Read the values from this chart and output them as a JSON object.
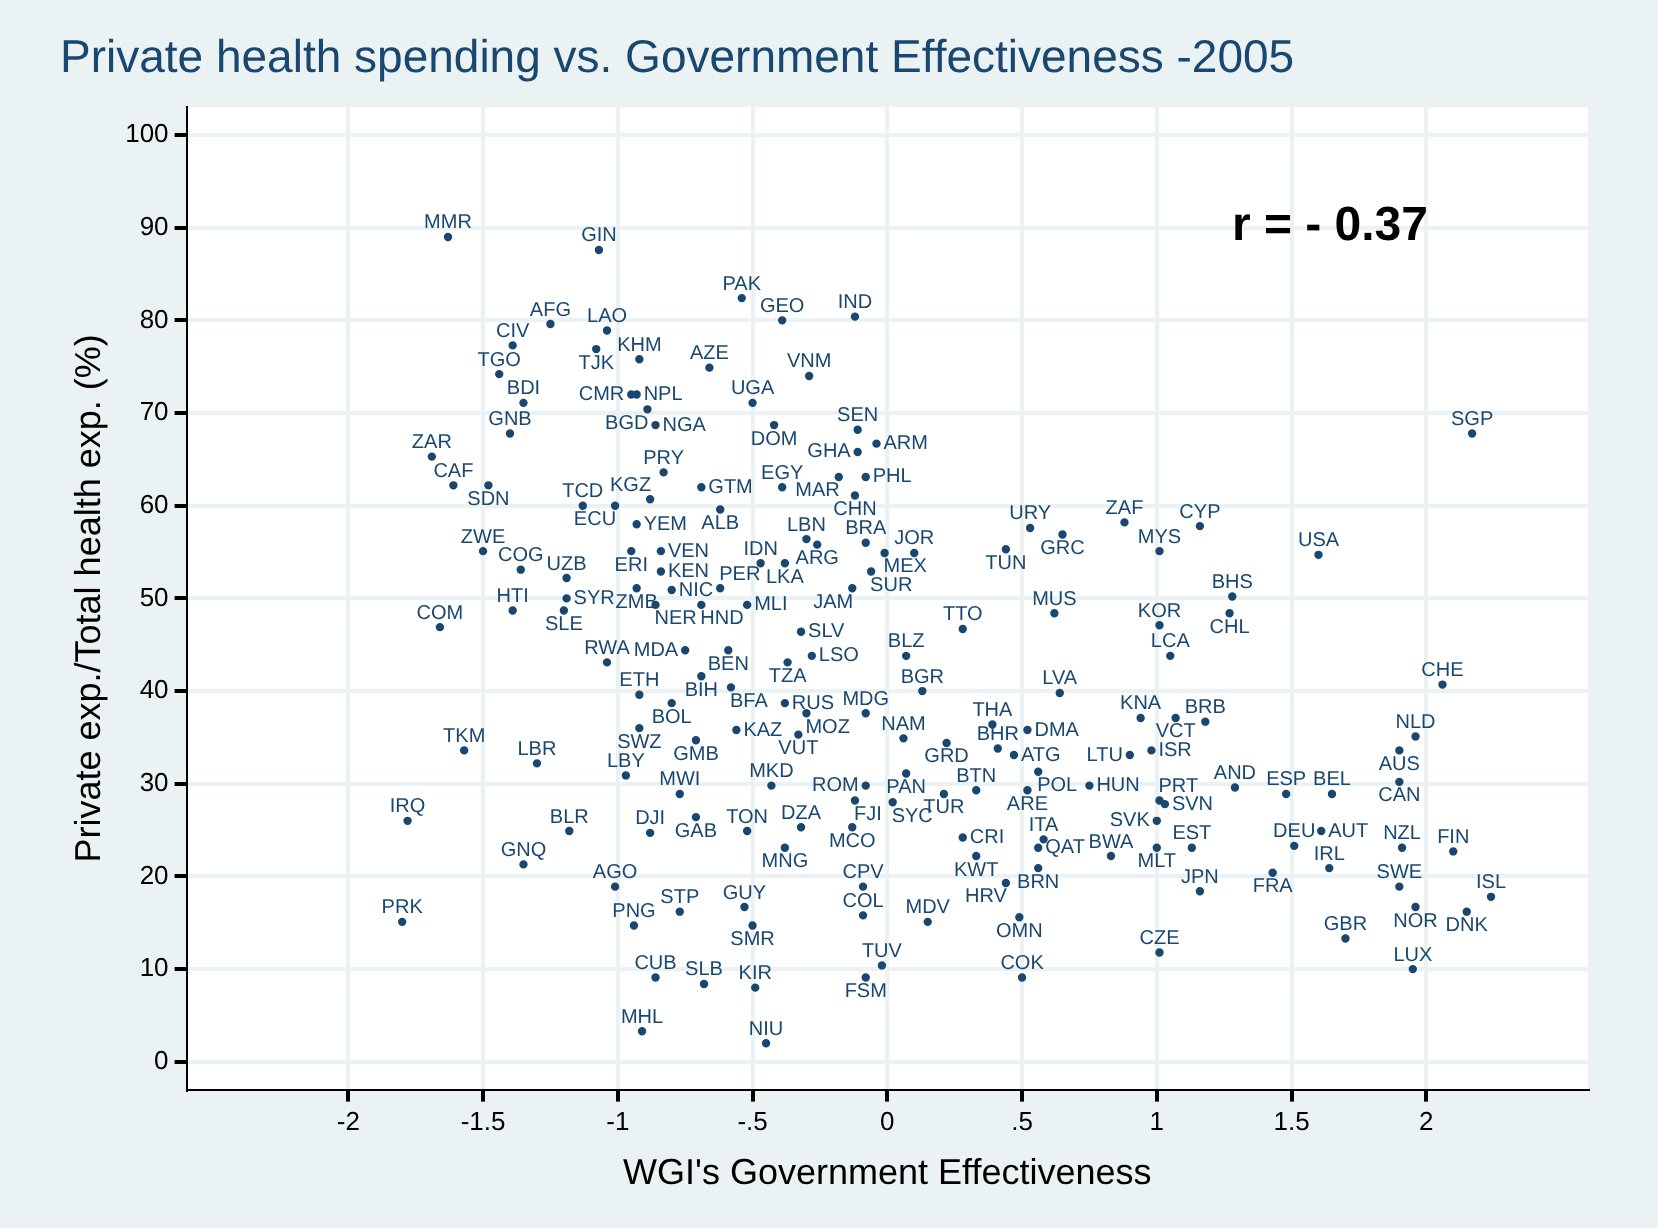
{
  "chart_data": {
    "type": "scatter",
    "title": "Private health spending vs. Government Effectiveness -2005",
    "xlabel": "WGI's Government Effectiveness",
    "ylabel": "Private exp./Total health exp. (%)",
    "annotations": [
      "r = - 0.37"
    ],
    "xlim": [
      -2.6,
      2.6
    ],
    "ylim": [
      -3,
      103
    ],
    "xticks": [
      -2,
      {
        "value": -1.5,
        "label": "-1.5"
      },
      -1,
      {
        "value": -0.5,
        "label": "-.5"
      },
      0,
      {
        "value": 0.5,
        "label": ".5"
      },
      1,
      {
        "value": 1.5,
        "label": "1.5"
      },
      2
    ],
    "yticks": [
      0,
      10,
      20,
      30,
      40,
      50,
      60,
      70,
      80,
      90,
      100
    ],
    "grid": true,
    "legend": false,
    "marker": "circle",
    "series": [
      {
        "color": "#1a476f",
        "x": [
          -1.63,
          -1.07,
          -0.54,
          -0.39,
          -0.12,
          -1.25,
          -1.04,
          -1.39,
          -1.08,
          -0.92,
          -0.66,
          -0.29,
          -1.44,
          -1.35,
          -0.5,
          -0.95,
          -0.93,
          -0.89,
          -0.86,
          -0.42,
          -1.4,
          -0.11,
          -0.04,
          -0.11,
          -1.69,
          -1.61,
          -1.48,
          -0.83,
          -0.69,
          -0.39,
          -0.18,
          -0.08,
          -0.12,
          -1.13,
          -1.01,
          -0.88,
          -0.62,
          -0.93,
          -0.95,
          -0.84,
          -1.5,
          -0.84,
          -1.36,
          -1.19,
          -0.47,
          -0.38,
          -0.3,
          -0.26,
          -0.08,
          -0.01,
          0.1,
          -0.06,
          -0.13,
          0.53,
          0.65,
          0.44,
          0.88,
          1.16,
          1.01,
          1.6,
          2.17,
          1.28,
          1.27,
          -1.19,
          -0.93,
          -0.8,
          -0.62,
          -0.86,
          -0.69,
          -0.52,
          -1.39,
          -1.2,
          -1.66,
          0.62,
          1.01,
          1.05,
          0.28,
          -0.32,
          -0.28,
          -0.37,
          0.07,
          -1.04,
          -0.75,
          -0.59,
          -0.69,
          -0.58,
          -0.92,
          -0.8,
          -0.92,
          -0.71,
          -0.56,
          -1.57,
          -1.3,
          -0.97,
          -0.77,
          -0.71,
          -0.88,
          -1.18,
          -1.78,
          -1.35,
          -0.52,
          -0.32,
          -0.13,
          -0.38,
          -1.01,
          -0.77,
          -0.94,
          -0.53,
          -0.5,
          -1.8,
          -0.86,
          -0.68,
          -0.49,
          -0.91,
          -0.45,
          -0.38,
          -0.3,
          -0.08,
          -0.33,
          0.13,
          0.64,
          0.06,
          0.22,
          0.39,
          0.52,
          0.41,
          0.47,
          0.56,
          0.75,
          0.52,
          0.33,
          0.21,
          0.07,
          -0.08,
          -0.12,
          0.02,
          0.28,
          0.33,
          0.58,
          0.56,
          0.56,
          0.44,
          0.83,
          1,
          1.13,
          1,
          1.01,
          1.03,
          0.94,
          1.07,
          1.18,
          0.98,
          0.9,
          1.29,
          1.48,
          1.65,
          2.06,
          1.96,
          1.9,
          1.9,
          1.51,
          1.61,
          1.64,
          1.43,
          1.91,
          2.1,
          1.9,
          1.96,
          2.15,
          2.24,
          1.7,
          1.95,
          1.16,
          1.01,
          -0.09,
          -0.09,
          0.15,
          0.49,
          -0.08,
          -0.02,
          0.5,
          -0.43
        ],
        "values": [
          89,
          87.6,
          82.4,
          80,
          80.4,
          79.6,
          78.9,
          77.3,
          76.9,
          75.8,
          74.9,
          74,
          74.2,
          71.1,
          71.1,
          72,
          72,
          70.4,
          68.7,
          68.7,
          67.8,
          68.2,
          66.7,
          65.8,
          65.3,
          62.2,
          62.2,
          63.6,
          62,
          62,
          63.1,
          63.1,
          61.1,
          60,
          60,
          60.7,
          59.6,
          58,
          55.1,
          55.1,
          55.1,
          52.9,
          53.1,
          52.2,
          53.8,
          53.8,
          56.4,
          55.8,
          56,
          54.9,
          54.9,
          52.9,
          51.1,
          57.6,
          56.9,
          55.3,
          58.2,
          57.8,
          55.1,
          54.7,
          67.8,
          50.2,
          48.4,
          50,
          51.1,
          50.9,
          51.1,
          49.3,
          49.3,
          49.3,
          48.7,
          48.7,
          46.9,
          48.4,
          47.1,
          43.8,
          46.7,
          46.4,
          43.8,
          43.1,
          43.8,
          43.1,
          44.4,
          44.4,
          41.6,
          40.4,
          39.6,
          38.7,
          36,
          34.7,
          35.8,
          33.6,
          32.2,
          30.9,
          28.9,
          26.4,
          24.7,
          24.9,
          26,
          21.3,
          24.9,
          25.3,
          25.3,
          23.1,
          18.9,
          16.2,
          14.7,
          16.7,
          14.7,
          15.1,
          9.1,
          8.4,
          8,
          3.3,
          2,
          38.7,
          37.6,
          37.6,
          35.3,
          40,
          39.8,
          34.9,
          34.4,
          36.4,
          35.8,
          33.8,
          33.1,
          31.3,
          29.8,
          29.3,
          29.3,
          28.9,
          31.1,
          29.8,
          28.2,
          28,
          24.2,
          22.2,
          24,
          23.1,
          20.9,
          19.3,
          22.2,
          23.1,
          23.1,
          26,
          28.2,
          27.8,
          37.1,
          37.1,
          36.7,
          33.6,
          33.1,
          29.6,
          28.9,
          28.9,
          40.7,
          35.1,
          33.6,
          30.2,
          23.3,
          24.9,
          20.9,
          20.4,
          23.1,
          22.7,
          18.9,
          16.7,
          16.2,
          17.8,
          13.3,
          10,
          18.4,
          11.8,
          18.9,
          15.8,
          15.1,
          15.6,
          9.1,
          10.4,
          9.1,
          29.8
        ],
        "value_labels": [
          "MMR",
          "GIN",
          "PAK",
          "GEO",
          "IND",
          "AFG",
          "LAO",
          "CIV",
          "TJK",
          "KHM",
          "AZE",
          "VNM",
          "TGO",
          "BDI",
          "UGA",
          "CMR",
          "NPL",
          "BGD",
          "NGA",
          "DOM",
          "GNB",
          "SEN",
          "ARM",
          "GHA",
          "ZAR",
          "CAF",
          "SDN",
          "PRY",
          "GTM",
          "EGY",
          "MAR",
          "PHL",
          "CHN",
          "TCD",
          "ECU",
          "KGZ",
          "ALB",
          "YEM",
          "ERI",
          "VEN",
          "ZWE",
          "KEN",
          "COG",
          "UZB",
          "IDN",
          "LKA",
          "LBN",
          "ARG",
          "BRA",
          "MEX",
          "JOR",
          "SUR",
          "JAM",
          "URY",
          "GRC",
          "TUN",
          "ZAF",
          "CYP",
          "MYS",
          "USA",
          "SGP",
          "BHS",
          "CHL",
          "SYR",
          "ZMB",
          "NIC",
          "PER",
          "NER",
          "HND",
          "MLI",
          "HTI",
          "SLE",
          "COM",
          "MUS",
          "KOR",
          "LCA",
          "TTO",
          "SLV",
          "LSO",
          "TZA",
          "BLZ",
          "RWA",
          "MDA",
          "BEN",
          "BIH",
          "BFA",
          "ETH",
          "BOL",
          "SWZ",
          "GMB",
          "KAZ",
          "TKM",
          "LBR",
          "LBY",
          "MWI",
          "GAB",
          "DJI",
          "BLR",
          "IRQ",
          "GNQ",
          "TON",
          "DZA",
          "MCO",
          "MNG",
          "AGO",
          "STP",
          "PNG",
          "GUY",
          "SMR",
          "PRK",
          "CUB",
          "SLB",
          "KIR",
          "MHL",
          "NIU",
          "RUS",
          "MOZ",
          "MDG",
          "VUT",
          "BGR",
          "LVA",
          "NAM",
          "GRD",
          "THA",
          "DMA",
          "BHR",
          "ATG",
          "POL",
          "HUN",
          "ARE",
          "BTN",
          "TUR",
          "PAN",
          "ROM",
          "FJI",
          "SYC",
          "CRI",
          "KWT",
          "ITA",
          "QAT",
          "BRN",
          "HRV",
          "BWA",
          "MLT",
          "EST",
          "SVK",
          "PRT",
          "SVN",
          "KNA",
          "VCT",
          "BRB",
          "ISR",
          "LTU",
          "AND",
          "ESP",
          "BEL",
          "CHE",
          "NLD",
          "AUS",
          "CAN",
          "DEU",
          "AUT",
          "IRL",
          "FRA",
          "NZL",
          "FIN",
          "SWE",
          "NOR",
          "DNK",
          "ISL",
          "GBR",
          "LUX",
          "JPN",
          "CZE",
          "CPV",
          "COL",
          "MDV",
          "OMN",
          "FSM",
          "TUV",
          "COK",
          "MKD"
        ]
      }
    ]
  }
}
